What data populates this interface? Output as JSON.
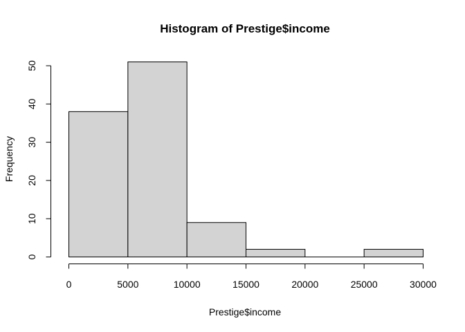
{
  "chart_data": {
    "type": "bar",
    "title": "Histogram of Prestige$income",
    "xlabel": "Prestige$income",
    "ylabel": "Frequency",
    "bins": [
      {
        "start": 0,
        "end": 5000,
        "count": 38
      },
      {
        "start": 5000,
        "end": 10000,
        "count": 51
      },
      {
        "start": 10000,
        "end": 15000,
        "count": 9
      },
      {
        "start": 15000,
        "end": 20000,
        "count": 2
      },
      {
        "start": 20000,
        "end": 25000,
        "count": 0
      },
      {
        "start": 25000,
        "end": 30000,
        "count": 2
      }
    ],
    "xlim": [
      0,
      30000
    ],
    "ylim": [
      0,
      51
    ],
    "x_ticks": [
      0,
      5000,
      10000,
      15000,
      20000,
      25000,
      30000
    ],
    "x_tick_labels": [
      "0",
      "5000",
      "10000",
      "15000",
      "20000",
      "25000",
      "30000"
    ],
    "y_ticks": [
      0,
      10,
      20,
      30,
      40,
      50
    ],
    "y_tick_labels": [
      "0",
      "10",
      "20",
      "30",
      "40",
      "50"
    ],
    "bar_color": "#d3d3d3",
    "border_color": "#000000",
    "grid": false,
    "legend": "none"
  }
}
